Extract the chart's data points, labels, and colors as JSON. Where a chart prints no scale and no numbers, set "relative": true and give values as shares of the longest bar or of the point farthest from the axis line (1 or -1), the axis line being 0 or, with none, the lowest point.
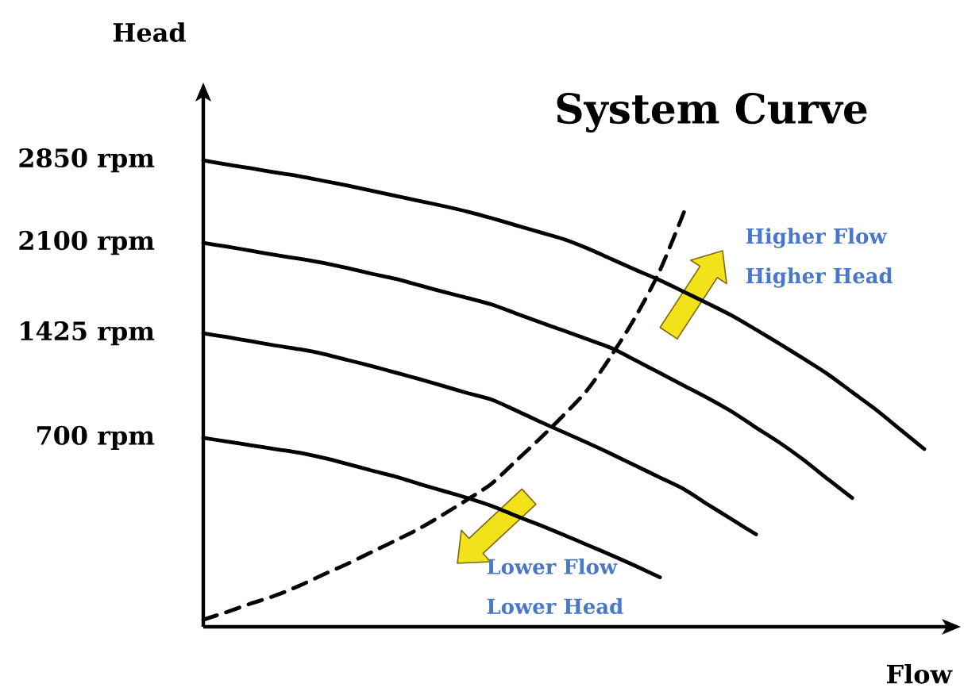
{
  "chart_data": {
    "type": "line",
    "relative": true,
    "title": "System Curve",
    "xlabel": "Flow",
    "ylabel": "Head",
    "categories": [
      null,
      null,
      null,
      null,
      null,
      null,
      null,
      null,
      null,
      null,
      null,
      null,
      null,
      null,
      null,
      null,
      null,
      null,
      null,
      null,
      null,
      null,
      null,
      null,
      null,
      null,
      null,
      null,
      null,
      null,
      null
    ],
    "series": [
      {
        "name": "2850 rpm",
        "color": "#000000",
        "values": [
          1.0,
          0.991,
          0.983,
          0.974,
          0.966,
          0.956,
          0.946,
          0.935,
          0.924,
          0.913,
          0.902,
          0.89,
          0.876,
          0.861,
          0.846,
          0.831,
          0.811,
          0.788,
          0.765,
          0.743,
          0.718,
          0.693,
          0.667,
          0.637,
          0.606,
          0.574,
          0.541,
          0.503,
          0.465,
          0.423,
          0.381
        ]
      },
      {
        "name": "2100 rpm",
        "color": "#000000",
        "values": [
          0.823,
          0.815,
          0.806,
          0.797,
          0.789,
          0.78,
          0.769,
          0.757,
          0.746,
          0.732,
          0.718,
          0.705,
          0.691,
          0.672,
          0.653,
          0.635,
          0.616,
          0.597,
          0.571,
          0.544,
          0.517,
          0.49,
          0.461,
          0.427,
          0.394,
          0.357,
          0.316,
          0.276,
          null,
          null,
          null
        ]
      },
      {
        "name": "1425 rpm",
        "color": "#000000",
        "values": [
          0.629,
          0.621,
          0.612,
          0.603,
          0.595,
          0.585,
          0.572,
          0.559,
          0.545,
          0.531,
          0.516,
          0.501,
          0.487,
          0.464,
          0.44,
          0.417,
          0.394,
          0.37,
          0.345,
          0.32,
          0.295,
          0.262,
          0.23,
          0.198,
          null,
          null,
          null,
          null,
          null,
          null,
          null
        ]
      },
      {
        "name": "700 rpm",
        "color": "#000000",
        "values": [
          0.405,
          0.397,
          0.389,
          0.381,
          0.373,
          0.362,
          0.349,
          0.335,
          0.322,
          0.306,
          0.291,
          0.276,
          0.259,
          0.238,
          0.218,
          0.197,
          0.175,
          0.153,
          0.13,
          0.106,
          null,
          null,
          null,
          null,
          null,
          null,
          null,
          null,
          null,
          null,
          null
        ]
      },
      {
        "color": "#000000",
        "line_style": "dashed",
        "values": [
          0.015,
          0.032,
          0.05,
          0.067,
          0.088,
          0.112,
          0.135,
          0.16,
          0.185,
          0.211,
          0.241,
          0.273,
          0.307,
          0.355,
          0.403,
          0.454,
          0.509,
          0.583,
          0.666,
          0.764,
          0.889,
          null,
          null,
          null,
          null,
          null,
          null,
          null,
          null,
          null,
          null
        ]
      }
    ],
    "annotations": [
      "Higher Flow",
      "Higher Head",
      "Lower Flow",
      "Lower Head"
    ]
  }
}
